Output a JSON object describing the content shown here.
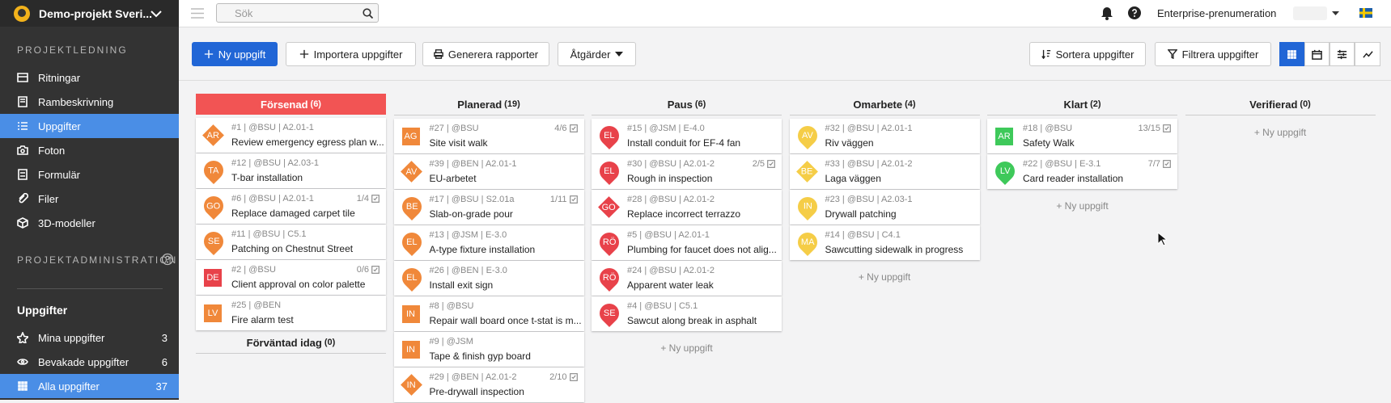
{
  "sidebar": {
    "project": "Demo-projekt Sveri...",
    "section1": "PROJEKTLEDNING",
    "nav": [
      {
        "label": "Ritningar"
      },
      {
        "label": "Rambeskrivning"
      },
      {
        "label": "Uppgifter",
        "active": true
      },
      {
        "label": "Foton"
      },
      {
        "label": "Formulär"
      },
      {
        "label": "Filer"
      },
      {
        "label": "3D-modeller"
      }
    ],
    "section2": "PROJEKTADMINISTRATION",
    "group": "Uppgifter",
    "filters": [
      {
        "label": "Mina uppgifter",
        "count": 3
      },
      {
        "label": "Bevakade uppgifter",
        "count": 6
      },
      {
        "label": "Alla uppgifter",
        "count": 37,
        "active": true
      }
    ]
  },
  "topbar": {
    "search": "Sök",
    "subscription": "Enterprise-prenumeration"
  },
  "toolbar": {
    "primary": "Ny uppgift",
    "buttons": [
      "Importera uppgifter",
      "Generera rapporter",
      "Åtgärder"
    ],
    "right_buttons": [
      "Sortera uppgifter",
      "Filtrera uppgifter"
    ]
  },
  "columns": [
    {
      "title": "Försenad",
      "count": "(6)",
      "header_color": "#f25454",
      "cards": [
        {
          "initials": "AR",
          "shape": "diamond",
          "color": "#f0883a",
          "meta": "#1 | @BSU | A2.01-1",
          "title": "Review emergency egress plan w..."
        },
        {
          "initials": "TA",
          "shape": "pin",
          "color": "#f0883a",
          "meta": "#12 | @BSU | A2.03-1",
          "title": "T-bar installation"
        },
        {
          "initials": "GO",
          "shape": "pin",
          "color": "#f0883a",
          "meta": "#6 | @BSU | A2.01-1",
          "title": "Replace damaged carpet tile",
          "progress": "1/4"
        },
        {
          "initials": "SE",
          "shape": "pin",
          "color": "#f0883a",
          "meta": "#11 | @BSU | C5.1",
          "title": "Patching on Chestnut Street"
        },
        {
          "initials": "DE",
          "shape": "square",
          "color": "#e8424a",
          "meta": "#2 | @BSU",
          "title": "Client approval on color palette",
          "progress": "0/6"
        },
        {
          "initials": "LV",
          "shape": "square",
          "color": "#f0883a",
          "meta": "#25 | @BEN",
          "title": "Fire alarm test"
        }
      ],
      "subheader": {
        "title": "Förväntad idag",
        "count": "(0)"
      }
    },
    {
      "title": "Planerad",
      "count": "(19)",
      "cards": [
        {
          "initials": "AG",
          "shape": "square",
          "color": "#f0883a",
          "meta": "#27 | @BSU",
          "title": "Site visit walk",
          "progress": "4/6"
        },
        {
          "initials": "AV",
          "shape": "diamond",
          "color": "#f0883a",
          "meta": "#39 | @BEN | A2.01-1",
          "title": "EU-arbetet"
        },
        {
          "initials": "BE",
          "shape": "pin",
          "color": "#f0883a",
          "meta": "#17 | @BSU | S2.01a",
          "title": "Slab-on-grade pour",
          "progress": "1/11"
        },
        {
          "initials": "EL",
          "shape": "pin",
          "color": "#f0883a",
          "meta": "#13 | @JSM | E-3.0",
          "title": "A-type fixture installation"
        },
        {
          "initials": "EL",
          "shape": "pin",
          "color": "#f0883a",
          "meta": "#26 | @BEN | E-3.0",
          "title": "Install exit sign"
        },
        {
          "initials": "IN",
          "shape": "square",
          "color": "#f0883a",
          "meta": "#8 | @BSU",
          "title": "Repair wall board once t-stat is m..."
        },
        {
          "initials": "IN",
          "shape": "square",
          "color": "#f0883a",
          "meta": "#9 | @JSM",
          "title": "Tape & finish gyp board"
        },
        {
          "initials": "IN",
          "shape": "diamond",
          "color": "#f0883a",
          "meta": "#29 | @BEN | A2.01-2",
          "title": "Pre-drywall inspection",
          "progress": "2/10"
        }
      ]
    },
    {
      "title": "Paus",
      "count": "(6)",
      "add": "+ Ny uppgift",
      "cards": [
        {
          "initials": "EL",
          "shape": "pin",
          "color": "#e8424a",
          "meta": "#15 | @JSM | E-4.0",
          "title": "Install conduit for EF-4 fan"
        },
        {
          "initials": "EL",
          "shape": "pin",
          "color": "#e8424a",
          "meta": "#30 | @BSU | A2.01-2",
          "title": "Rough in inspection",
          "progress": "2/5"
        },
        {
          "initials": "GO",
          "shape": "diamond",
          "color": "#e8424a",
          "meta": "#28 | @BSU | A2.01-2",
          "title": "Replace incorrect terrazzo"
        },
        {
          "initials": "RÖ",
          "shape": "pin",
          "color": "#e8424a",
          "meta": "#5 | @BSU | A2.01-1",
          "title": "Plumbing for faucet does not alig..."
        },
        {
          "initials": "RÖ",
          "shape": "pin",
          "color": "#e8424a",
          "meta": "#24 | @BSU | A2.01-2",
          "title": "Apparent water leak"
        },
        {
          "initials": "SE",
          "shape": "pin",
          "color": "#e8424a",
          "meta": "#4 | @BSU | C5.1",
          "title": "Sawcut along break in asphalt"
        }
      ]
    },
    {
      "title": "Omarbete",
      "count": "(4)",
      "add": "+ Ny uppgift",
      "cards": [
        {
          "initials": "AV",
          "shape": "pin",
          "color": "#f5cd47",
          "meta": "#32 | @BSU | A2.01-1",
          "title": "Riv väggen"
        },
        {
          "initials": "BE",
          "shape": "diamond",
          "color": "#f5cd47",
          "meta": "#33 | @BSU | A2.01-2",
          "title": "Laga väggen"
        },
        {
          "initials": "IN",
          "shape": "pin",
          "color": "#f5cd47",
          "meta": "#23 | @BSU | A2.03-1",
          "title": "Drywall patching"
        },
        {
          "initials": "MA",
          "shape": "pin",
          "color": "#f5cd47",
          "meta": "#14 | @BSU | C4.1",
          "title": "Sawcutting sidewalk in progress"
        }
      ]
    },
    {
      "title": "Klart",
      "count": "(2)",
      "add": "+ Ny uppgift",
      "cards": [
        {
          "initials": "AR",
          "shape": "square",
          "color": "#3ec95a",
          "meta": "#18 | @BSU",
          "title": "Safety Walk",
          "progress": "13/15"
        },
        {
          "initials": "LV",
          "shape": "pin",
          "color": "#3ec95a",
          "meta": "#22 | @BSU | E-3.1",
          "title": "Card reader installation",
          "progress": "7/7"
        }
      ]
    },
    {
      "title": "Verifierad",
      "count": "(0)",
      "add": "+ Ny uppgift",
      "cards": []
    }
  ]
}
